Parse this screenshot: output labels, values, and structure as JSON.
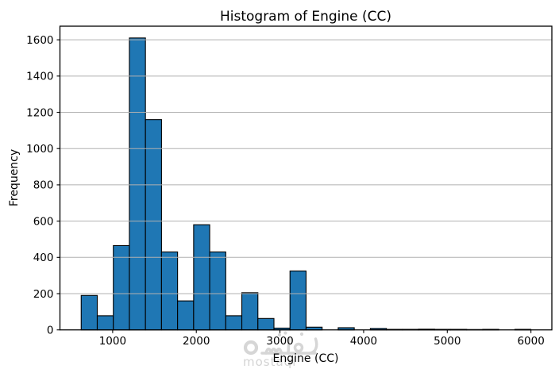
{
  "title": "Histogram of Engine (CC)",
  "watermark": {
    "arabic": "مستقل",
    "latin": "mostaql"
  },
  "chart_data": {
    "type": "bar",
    "subtype": "histogram",
    "title": "Histogram of Engine (CC)",
    "xlabel": "Engine (CC)",
    "ylabel": "Frequency",
    "bin_edges": [
      624,
      816,
      1008,
      1200,
      1392,
      1584,
      1776,
      1968,
      2160,
      2352,
      2544,
      2736,
      2928,
      3120,
      3312,
      3504,
      3696,
      3888,
      4080,
      4272,
      4464,
      4656,
      4848,
      5040,
      5232,
      5424,
      5616,
      5808,
      6000
    ],
    "frequencies": [
      190,
      78,
      465,
      1610,
      1160,
      430,
      160,
      580,
      430,
      78,
      205,
      63,
      10,
      325,
      15,
      0,
      12,
      0,
      8,
      3,
      3,
      4,
      3,
      3,
      2,
      3,
      0,
      3
    ],
    "xticks": [
      1000,
      2000,
      3000,
      4000,
      5000,
      6000
    ],
    "yticks": [
      0,
      200,
      400,
      600,
      800,
      1000,
      1200,
      1400,
      1600
    ],
    "xlim": [
      370,
      6250
    ],
    "ylim": [
      0,
      1675
    ],
    "grid": "y",
    "grid_above_bars": true,
    "legend": "none",
    "bar_color": "#1f77b4",
    "bar_edge_color": "#000000",
    "grid_color": "#b0b0b0",
    "spine_color": "#000000",
    "text_color": "#000000",
    "watermark_color": "#d6d6d6"
  }
}
